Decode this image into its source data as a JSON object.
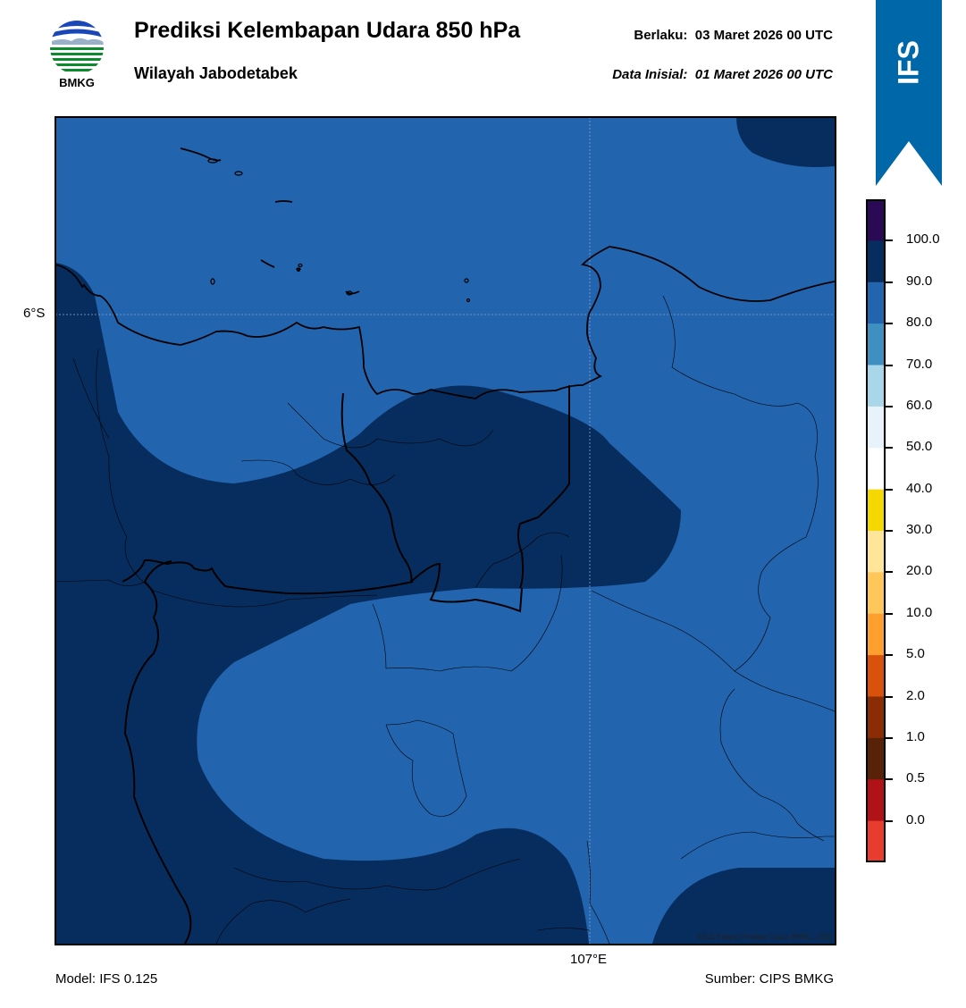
{
  "header": {
    "title": "Prediksi Kelembapan Udara 850 hPa",
    "subtitle": "Wilayah Jabodetabek",
    "valid_label": "Berlaku:",
    "valid_time": "03 Maret 2026 00 UTC",
    "init_label": "Data Inisial:",
    "init_time": "01 Maret 2026 00 UTC"
  },
  "logo": {
    "text": "BMKG",
    "icon": "bmkg-logo-icon"
  },
  "ribbon": {
    "label": "IFS",
    "color": "#0068a8"
  },
  "map": {
    "lat_label": "6°S",
    "lon_label": "107°E",
    "copyright": "©Sub Bidang Prediksi Cuaca BMKG, 2020",
    "colors": {
      "band_80_90": "#2264ad",
      "band_90_100": "#072d5e"
    }
  },
  "colorbar": {
    "labels": [
      "100.0",
      "90.0",
      "80.0",
      "70.0",
      "60.0",
      "50.0",
      "40.0",
      "30.0",
      "20.0",
      "10.0",
      "5.0",
      "2.0",
      "1.0",
      "0.5",
      "0.0"
    ],
    "colors": [
      "#2a0a55",
      "#072d5e",
      "#2264ad",
      "#3f8fc0",
      "#a9d6e8",
      "#e8f2fa",
      "#ffffff",
      "#f5d800",
      "#ffe59a",
      "#ffc65a",
      "#ff9f30",
      "#d9520c",
      "#8a2c05",
      "#582208",
      "#b01217",
      "#e83c2f"
    ]
  },
  "footer": {
    "model": "Model: IFS 0.125",
    "source": "Sumber: CIPS BMKG"
  }
}
